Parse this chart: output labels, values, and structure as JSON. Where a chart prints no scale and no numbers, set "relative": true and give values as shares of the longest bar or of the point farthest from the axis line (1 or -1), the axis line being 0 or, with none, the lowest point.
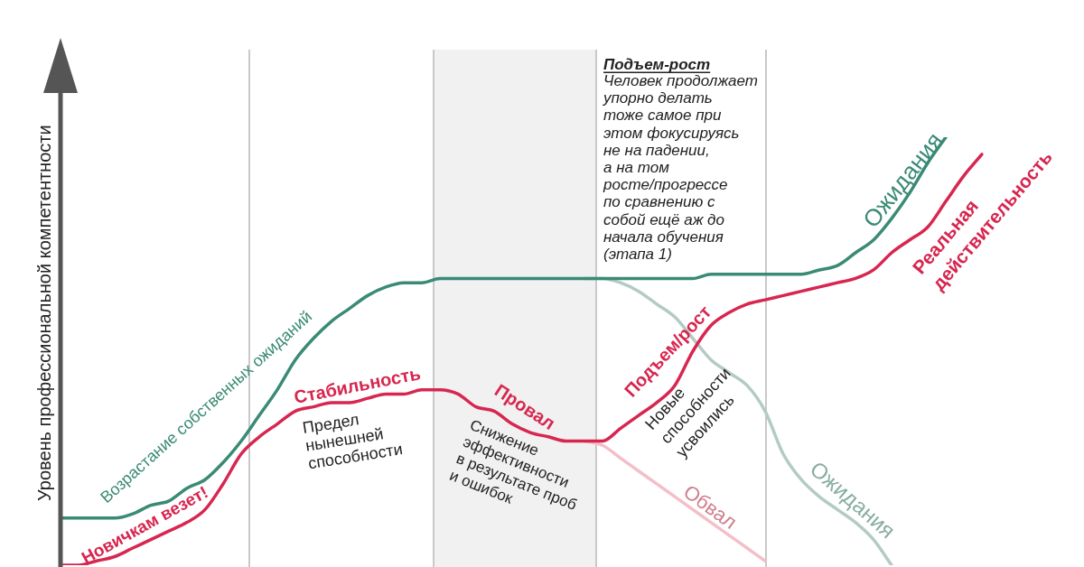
{
  "chart_data": {
    "type": "line",
    "relative": true,
    "ylabel": "Уровень профессиональной компетентности",
    "categories": [
      null,
      null,
      null,
      null,
      null,
      null,
      null,
      null,
      null,
      null,
      null,
      null,
      null,
      null,
      null,
      null,
      null,
      null,
      null,
      null,
      null,
      null,
      null,
      null,
      null,
      null,
      null,
      null,
      null,
      null,
      null,
      null,
      null,
      null,
      null,
      null,
      null,
      null,
      null,
      null,
      null,
      null,
      null,
      null,
      null,
      null,
      null,
      null,
      null,
      null,
      null,
      null
    ],
    "series": [
      {
        "name": "Ожидания",
        "color": "#3a8a75",
        "values": [
          0.11,
          0.11,
          0.11,
          0.11,
          0.12,
          0.14,
          0.15,
          0.18,
          0.2,
          0.24,
          0.29,
          0.35,
          0.41,
          0.48,
          0.53,
          0.57,
          0.6,
          0.63,
          0.65,
          0.66,
          0.66,
          0.67,
          0.67,
          0.67,
          0.67,
          0.67,
          0.67,
          0.67,
          0.67,
          0.67,
          0.67,
          0.67,
          0.67,
          0.67,
          0.67,
          0.67,
          0.68,
          0.68,
          0.68,
          0.68,
          0.68,
          0.68,
          0.69,
          0.7,
          0.73,
          0.76,
          0.81,
          0.87,
          0.94,
          1,
          null,
          null
        ]
      },
      {
        "name": "Реальная действительность",
        "color": "#d7264f",
        "values": [
          0,
          0,
          0.01,
          0.02,
          0.04,
          0.06,
          0.08,
          0.1,
          0.13,
          0.19,
          0.26,
          0.3,
          0.33,
          0.36,
          0.37,
          0.38,
          0.38,
          0.39,
          0.4,
          0.4,
          0.41,
          0.41,
          0.4,
          0.37,
          0.36,
          0.33,
          0.31,
          0.3,
          0.29,
          0.29,
          0.29,
          0.32,
          0.35,
          0.38,
          0.42,
          0.5,
          0.56,
          0.59,
          0.61,
          0.62,
          0.63,
          0.64,
          0.65,
          0.66,
          0.67,
          0.69,
          0.73,
          0.76,
          0.79,
          0.85,
          0.91,
          0.96
        ]
      },
      {
        "name": "Ожидания",
        "color": "#b3cbc4",
        "values": [
          null,
          null,
          null,
          null,
          null,
          null,
          null,
          null,
          null,
          null,
          null,
          null,
          null,
          null,
          null,
          null,
          null,
          null,
          null,
          null,
          null,
          null,
          null,
          null,
          null,
          null,
          null,
          null,
          null,
          0.67,
          0.67,
          0.66,
          0.64,
          0.61,
          0.58,
          0.53,
          0.48,
          0.45,
          0.42,
          0.36,
          0.26,
          0.2,
          0.16,
          0.13,
          0.1,
          0.06,
          0,
          null,
          null,
          null,
          null,
          null
        ]
      },
      {
        "name": "Обвал",
        "color": "#f3bfc8",
        "values": [
          null,
          null,
          null,
          null,
          null,
          null,
          null,
          null,
          null,
          null,
          null,
          null,
          null,
          null,
          null,
          null,
          null,
          null,
          null,
          null,
          null,
          null,
          null,
          null,
          null,
          null,
          null,
          null,
          null,
          0.29,
          0.28,
          0.25,
          0.22,
          0.19,
          0.16,
          0.13,
          0.1,
          0.07,
          0.04,
          0.01,
          null,
          null,
          null,
          null,
          null,
          null,
          null,
          null,
          null,
          null,
          null,
          null
        ]
      }
    ],
    "annotations": [
      "Возрастание собственных ожиданий",
      "Новичкам везет!",
      "Стабильность",
      "Предел\nнынешней\nспособности",
      "Провал",
      "Снижение\nэффективности\nв результате проб\nи ошибок",
      "Подъем/рост",
      "Новые\nспособности\nусвоились",
      "Подъем-рост",
      "Человек продолжает\nупорно делать\nтоже самое при\nэтом фокусируясь\nне на падении,\nа на том\nросте/прогрессе\nпо сравнению с\nсобой ещё аж до\nначала обучения\n(этапа 1)"
    ]
  }
}
